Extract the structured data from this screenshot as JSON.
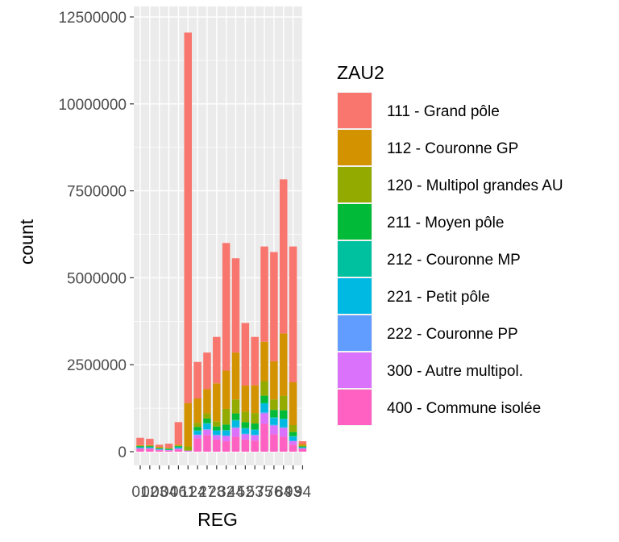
{
  "chart_data": {
    "type": "bar",
    "stacked": true,
    "title": "",
    "xlabel": "REG",
    "ylabel": "count",
    "ylim": [
      0,
      12500000
    ],
    "yticks": [
      0,
      2500000,
      5000000,
      7500000,
      10000000,
      12500000
    ],
    "ytick_labels": [
      "0",
      "2500000",
      "5000000",
      "7500000",
      "10000000",
      "12500000"
    ],
    "categories": [
      "01",
      "02",
      "03",
      "04",
      "06",
      "11",
      "24",
      "27",
      "28",
      "32",
      "44",
      "52",
      "53",
      "75",
      "76",
      "84",
      "93",
      "94"
    ],
    "grid": true,
    "panel_background": "#ebebeb",
    "legend": {
      "title": "ZAU2",
      "position": "right"
    },
    "series": [
      {
        "name": "400 - Commune isolée",
        "color": "#FF61C3",
        "values": [
          80000,
          80000,
          40000,
          30000,
          60000,
          0,
          380000,
          480000,
          350000,
          300000,
          430000,
          350000,
          320000,
          800000,
          500000,
          430000,
          200000,
          80000
        ]
      },
      {
        "name": "300 - Autre multipol.",
        "color": "#DB72FB",
        "values": [
          20000,
          20000,
          20000,
          15000,
          30000,
          30000,
          100000,
          150000,
          120000,
          150000,
          250000,
          150000,
          150000,
          300000,
          250000,
          250000,
          100000,
          20000
        ]
      },
      {
        "name": "222 - Couronne PP",
        "color": "#619CFF",
        "values": [
          0,
          0,
          0,
          0,
          0,
          0,
          10000,
          15000,
          15000,
          15000,
          20000,
          15000,
          15000,
          30000,
          20000,
          20000,
          15000,
          0
        ]
      },
      {
        "name": "221 - Petit pôle",
        "color": "#00B9E3",
        "values": [
          30000,
          30000,
          20000,
          15000,
          40000,
          0,
          110000,
          160000,
          120000,
          140000,
          190000,
          150000,
          140000,
          250000,
          200000,
          230000,
          120000,
          30000
        ]
      },
      {
        "name": "212 - Couronne MP",
        "color": "#00C19F",
        "values": [
          0,
          0,
          0,
          0,
          0,
          0,
          10000,
          15000,
          10000,
          15000,
          20000,
          15000,
          15000,
          20000,
          20000,
          20000,
          10000,
          0
        ]
      },
      {
        "name": "211 - Moyen pôle",
        "color": "#00BA38",
        "values": [
          30000,
          30000,
          20000,
          20000,
          30000,
          0,
          100000,
          130000,
          110000,
          160000,
          190000,
          170000,
          170000,
          210000,
          210000,
          240000,
          120000,
          20000
        ]
      },
      {
        "name": "120 - Multipol grandes AU",
        "color": "#93AA00",
        "values": [
          10000,
          10000,
          10000,
          10000,
          10000,
          120000,
          120000,
          150000,
          140000,
          450000,
          400000,
          300000,
          300000,
          420000,
          300000,
          420000,
          200000,
          20000
        ]
      },
      {
        "name": "112 - Couronne GP",
        "color": "#D39200",
        "values": [
          20000,
          20000,
          30000,
          20000,
          30000,
          1250000,
          700000,
          700000,
          1100000,
          1100000,
          1350000,
          750000,
          800000,
          1130000,
          1100000,
          1790000,
          1230000,
          50000
        ]
      },
      {
        "name": "111 - Grand pôle",
        "color": "#F8766D",
        "values": [
          210000,
          180000,
          60000,
          120000,
          650000,
          10650000,
          1050000,
          1050000,
          1335000,
          3670000,
          2710000,
          1800000,
          1390000,
          2740000,
          3140000,
          4430000,
          3905000,
          80000
        ]
      }
    ]
  }
}
